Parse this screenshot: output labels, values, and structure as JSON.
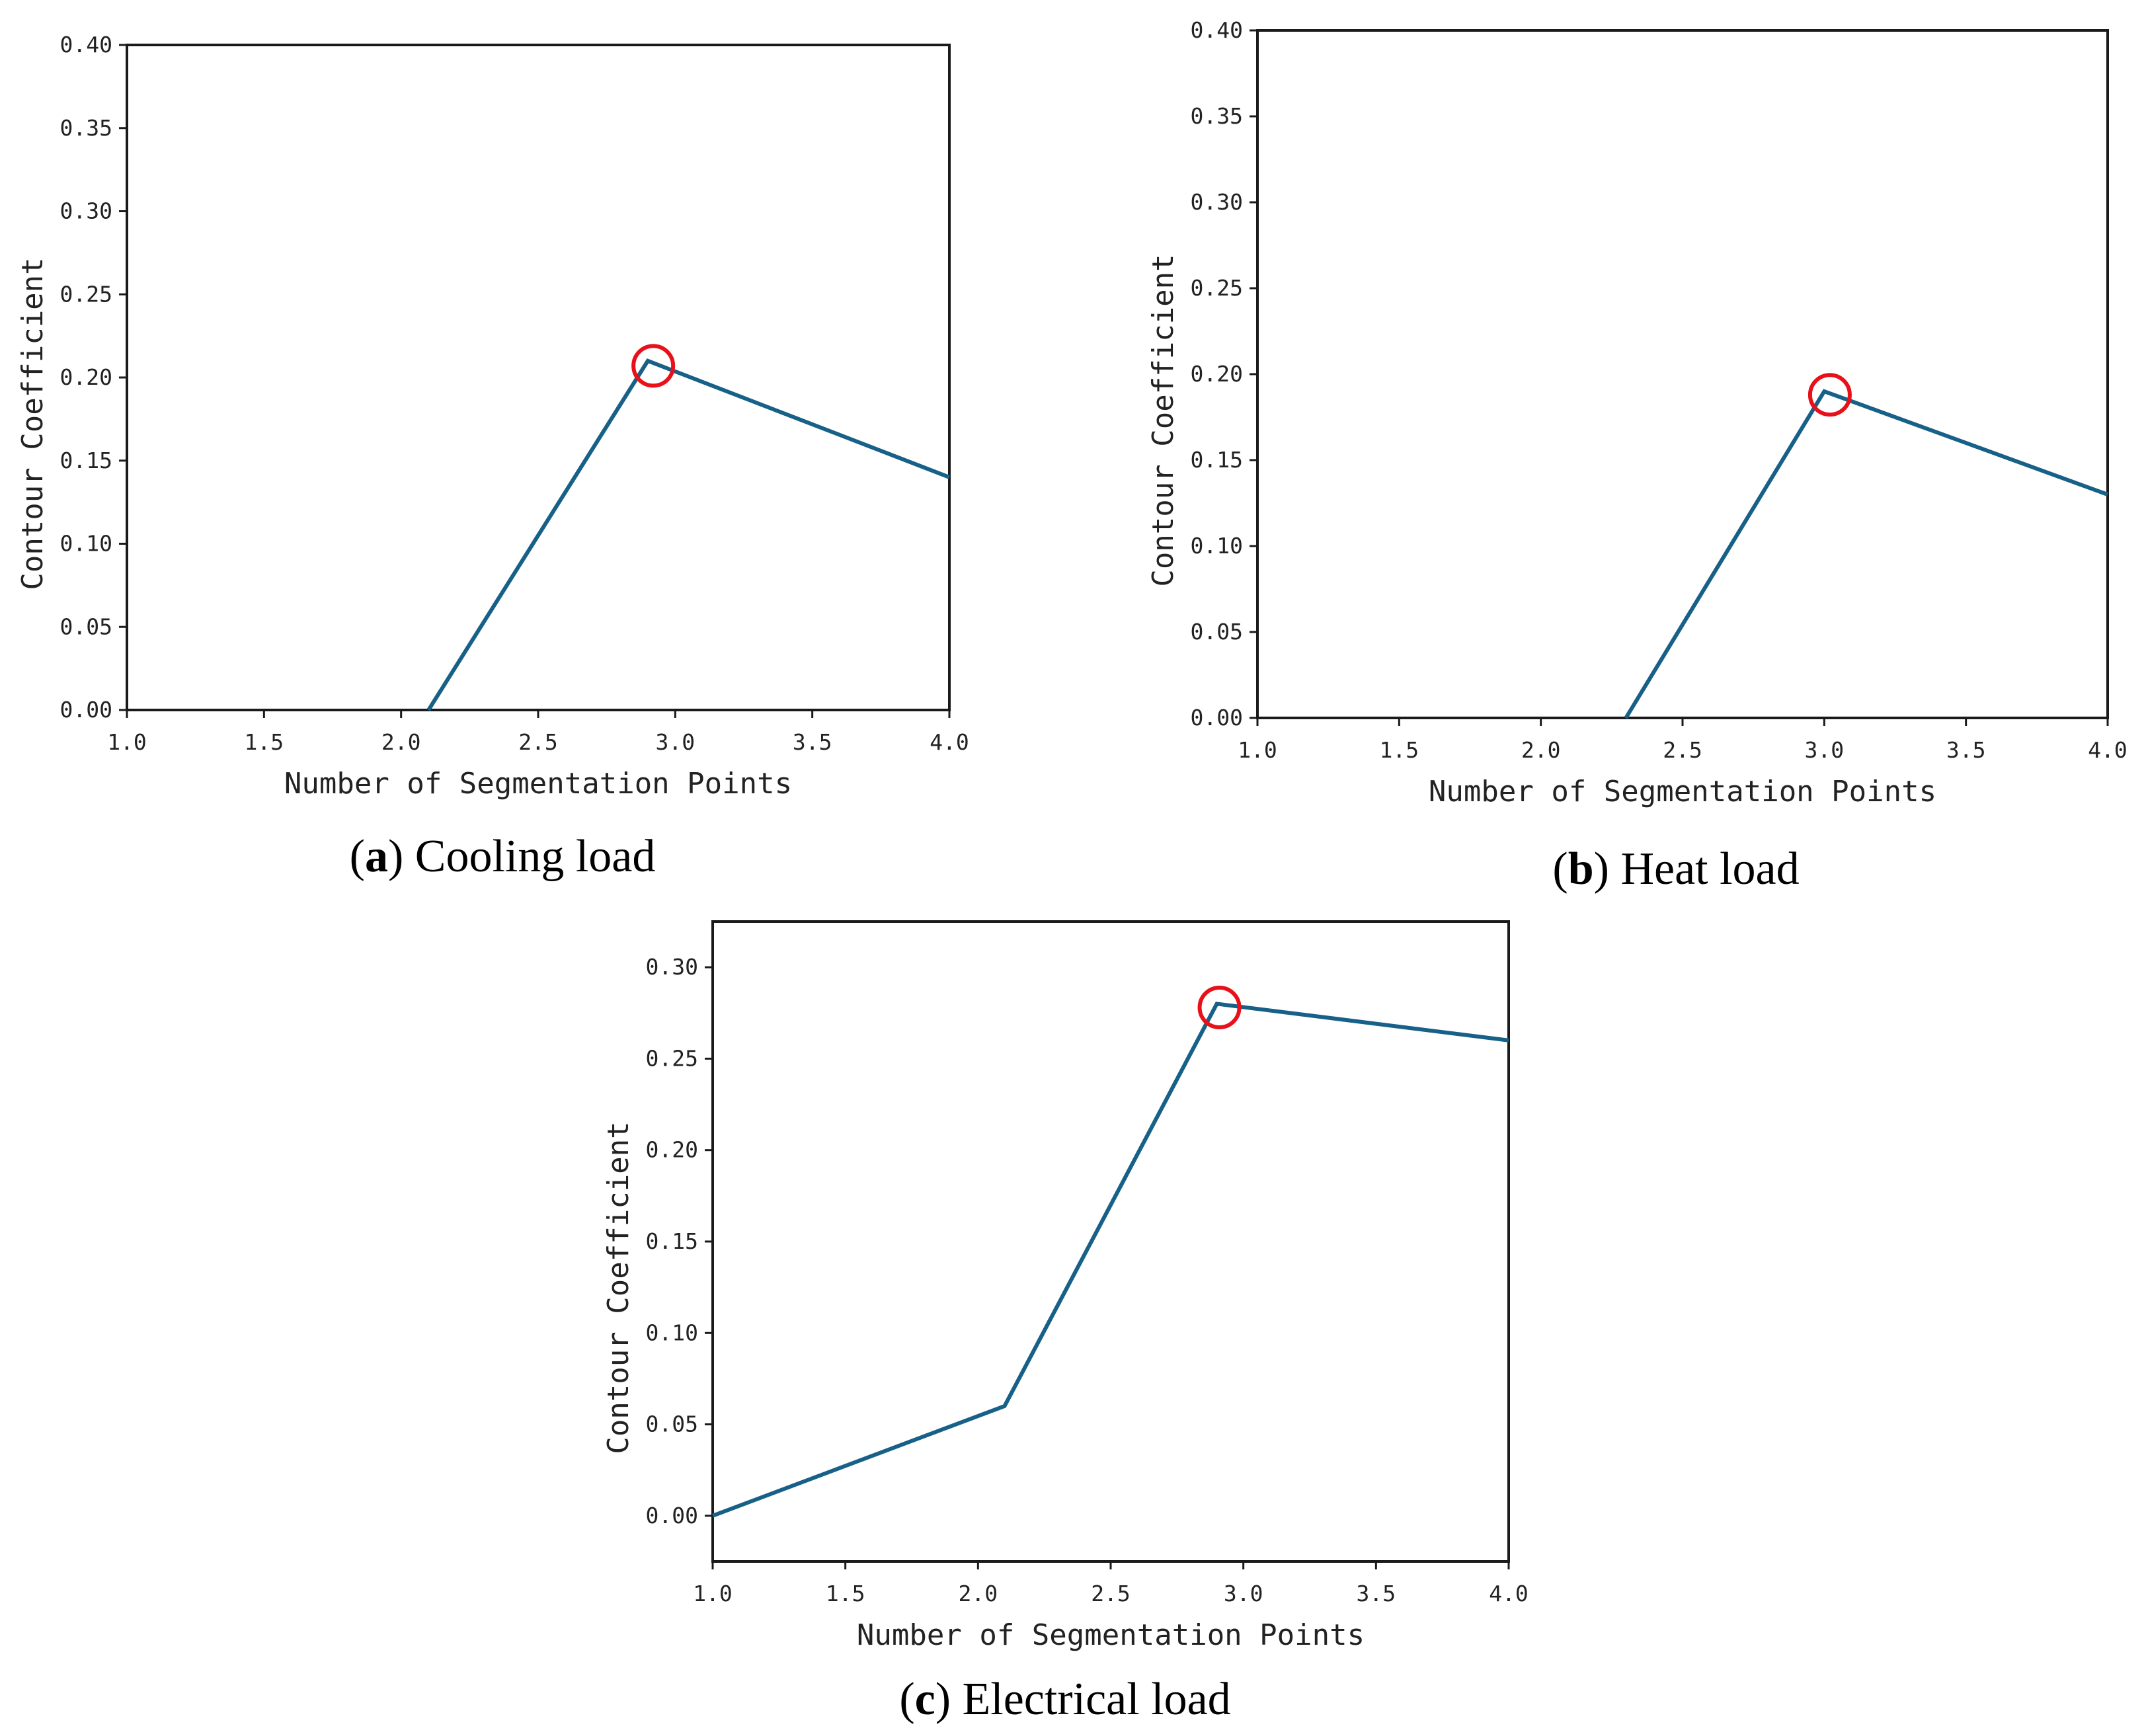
{
  "colors": {
    "series": "#176087",
    "marker": "#e8111a"
  },
  "chart_data": [
    {
      "panel": "a",
      "type": "line",
      "caption_letter": "a",
      "caption_text": "Cooling load",
      "xlabel": "Number of Segmentation Points",
      "ylabel": "Contour Coefficient",
      "xlim": [
        1.0,
        4.0
      ],
      "ylim": [
        0.0,
        0.4
      ],
      "xticks": [
        "1.0",
        "1.5",
        "2.0",
        "2.5",
        "3.0",
        "3.5",
        "4.0"
      ],
      "yticks": [
        "0.00",
        "0.05",
        "0.10",
        "0.15",
        "0.20",
        "0.25",
        "0.30",
        "0.35",
        "0.40"
      ],
      "series": [
        {
          "name": "Contour Coefficient",
          "x": [
            2.1,
            2.9,
            4.0
          ],
          "y": [
            0.0,
            0.21,
            0.14
          ]
        }
      ],
      "highlight": {
        "x": 2.92,
        "y": 0.207
      }
    },
    {
      "panel": "b",
      "type": "line",
      "caption_letter": "b",
      "caption_text": "Heat load",
      "xlabel": "Number of Segmentation Points",
      "ylabel": "Contour Coefficient",
      "xlim": [
        1.0,
        4.0
      ],
      "ylim": [
        0.0,
        0.4
      ],
      "xticks": [
        "1.0",
        "1.5",
        "2.0",
        "2.5",
        "3.0",
        "3.5",
        "4.0"
      ],
      "yticks": [
        "0.00",
        "0.05",
        "0.10",
        "0.15",
        "0.20",
        "0.25",
        "0.30",
        "0.35",
        "0.40"
      ],
      "series": [
        {
          "name": "Contour Coefficient",
          "x": [
            2.3,
            3.0,
            4.0
          ],
          "y": [
            0.0,
            0.19,
            0.13
          ]
        }
      ],
      "highlight": {
        "x": 3.02,
        "y": 0.188
      }
    },
    {
      "panel": "c",
      "type": "line",
      "caption_letter": "c",
      "caption_text": "Electrical load",
      "xlabel": "Number of Segmentation Points",
      "ylabel": "Contour Coefficient",
      "xlim": [
        1.0,
        4.0
      ],
      "ylim": [
        -0.025,
        0.325
      ],
      "xticks": [
        "1.0",
        "1.5",
        "2.0",
        "2.5",
        "3.0",
        "3.5",
        "4.0"
      ],
      "yticks": [
        "0.00",
        "0.05",
        "0.10",
        "0.15",
        "0.20",
        "0.25",
        "0.30"
      ],
      "series": [
        {
          "name": "Contour Coefficient",
          "x": [
            1.0,
            2.1,
            2.9,
            4.0
          ],
          "y": [
            0.0,
            0.06,
            0.28,
            0.26
          ]
        }
      ],
      "highlight": {
        "x": 2.91,
        "y": 0.278
      }
    }
  ]
}
